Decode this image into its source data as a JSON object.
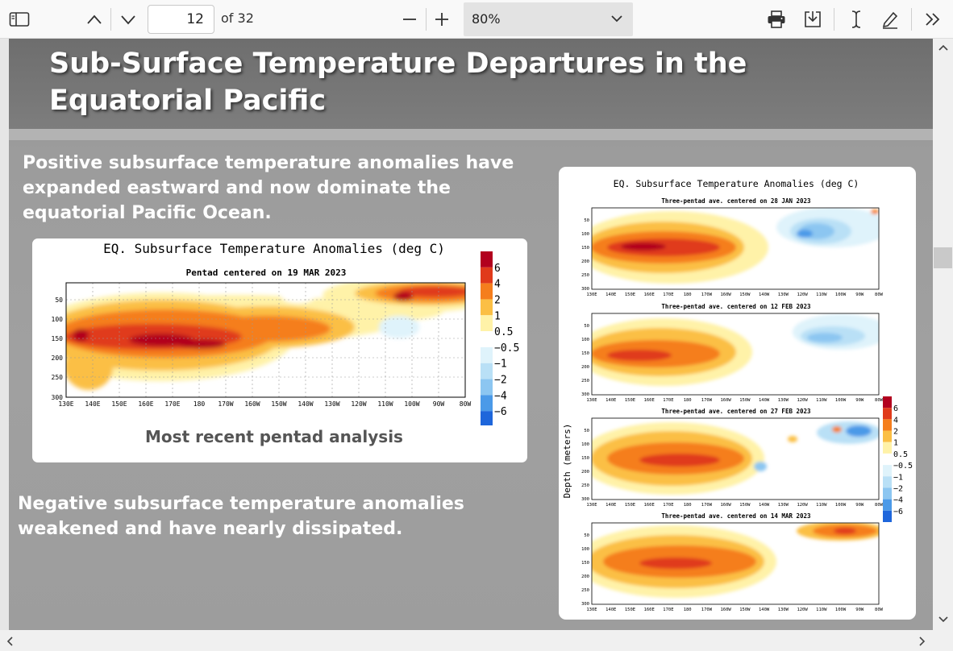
{
  "toolbar": {
    "page_number": "12",
    "page_total": "of 32",
    "zoom_value": "80%",
    "icons": [
      "sidebar-toggle-icon",
      "previous-page-icon",
      "next-page-icon",
      "zoom-out-icon",
      "zoom-in-icon",
      "print-icon",
      "save-icon",
      "text-select-icon",
      "draw-icon",
      "more-tools-icon"
    ]
  },
  "slide": {
    "title": "Sub-Surface Temperature Departures in the Equatorial Pacific",
    "paragraph_1": "Positive subsurface temperature anomalies have expanded eastward and now dominate the equatorial Pacific Ocean.",
    "paragraph_2": "Negative subsurface temperature anomalies weakened and have nearly dissipated.",
    "caption": "Most recent pentad analysis"
  },
  "colors": {
    "slide_bg": "#9d9d9d",
    "title_bar": "#737373",
    "anom_6": "#b2001e",
    "anom_4": "#e03a1b",
    "anom_2": "#f57e1d",
    "anom_1": "#fbbf45",
    "anom_05": "#fff2a8",
    "anom_m05": "#dff3fb",
    "anom_m1": "#b9e0f6",
    "anom_m2": "#8cc6f1",
    "anom_m4": "#4b9ae8",
    "anom_m6": "#1e66db"
  },
  "chart_data": [
    {
      "type": "heatmap",
      "title": "EQ. Subsurface Temperature Anomalies (deg C)",
      "subtitle": "Pentad centered on 19 MAR 2023",
      "x_ticks": [
        "130E",
        "140E",
        "150E",
        "160E",
        "170E",
        "180",
        "170W",
        "160W",
        "150W",
        "140W",
        "130W",
        "120W",
        "110W",
        "100W",
        "90W",
        "80W"
      ],
      "y_ticks": [
        "50",
        "100",
        "150",
        "200",
        "250",
        "300"
      ],
      "colorbar_labels": [
        "6",
        "4",
        "2",
        "1",
        "0.5",
        "−0.5",
        "−1",
        "−2",
        "−4",
        "−6"
      ]
    },
    {
      "type": "heatmap",
      "title": "EQ. Subsurface Temperature Anomalies (deg C)",
      "ylabel": "Depth (meters)",
      "panels": [
        "Three-pentad ave. centered on 28 JAN 2023",
        "Three-pentad ave. centered on 12 FEB 2023",
        "Three-pentad ave. centered on 27 FEB 2023",
        "Three-pentad ave. centered on 14 MAR 2023"
      ],
      "x_ticks": [
        "130E",
        "140E",
        "150E",
        "160E",
        "170E",
        "180",
        "170W",
        "160W",
        "150W",
        "140W",
        "130W",
        "120W",
        "110W",
        "100W",
        "90W",
        "80W"
      ],
      "y_ticks": [
        "50",
        "100",
        "150",
        "200",
        "250",
        "300"
      ],
      "colorbar_labels": [
        "6",
        "4",
        "2",
        "1",
        "0.5",
        "−0.5",
        "−1",
        "−2",
        "−4",
        "−6"
      ]
    }
  ]
}
